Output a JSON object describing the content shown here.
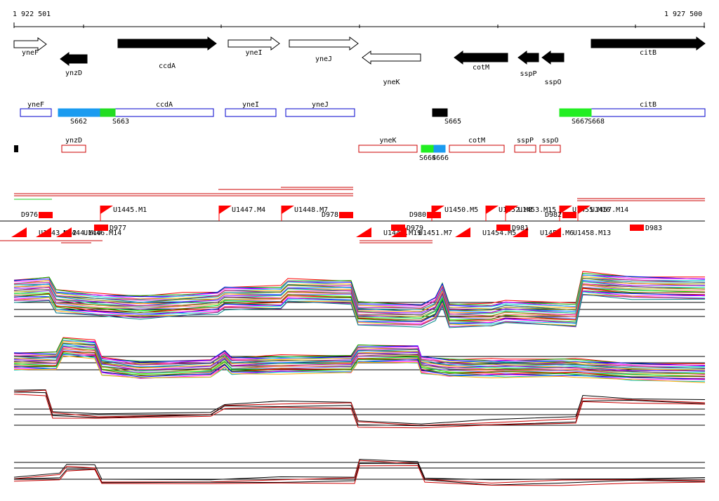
{
  "coordinates": {
    "start_label": "1 922 501",
    "end_label": "1 927 500"
  },
  "genes": [
    {
      "name": "yneF",
      "strand": "+",
      "filled": false,
      "start": 0,
      "end": 46
    },
    {
      "name": "ynzD",
      "strand": "-",
      "filled": true,
      "start": 66,
      "end": 104
    },
    {
      "name": "ccdA",
      "strand": "+",
      "filled": true,
      "start": 148,
      "end": 288
    },
    {
      "name": "yneI",
      "strand": "+",
      "filled": false,
      "start": 305,
      "end": 378
    },
    {
      "name": "yneJ",
      "strand": "+",
      "filled": false,
      "start": 392,
      "end": 490
    },
    {
      "name": "yneK",
      "strand": "-",
      "filled": false,
      "start": 496,
      "end": 579
    },
    {
      "name": "cotM",
      "strand": "-",
      "filled": true,
      "start": 627,
      "end": 703
    },
    {
      "name": "sspP",
      "strand": "-",
      "filled": true,
      "start": 718,
      "end": 747
    },
    {
      "name": "sspO",
      "strand": "-",
      "filled": true,
      "start": 752,
      "end": 783
    },
    {
      "name": "citB",
      "strand": "+",
      "filled": true,
      "start": 822,
      "end": 984
    }
  ],
  "plus_track": [
    {
      "name": "yneF",
      "start": 9,
      "end": 53
    },
    {
      "name": "ccdA",
      "start": 144,
      "end": 284
    },
    {
      "name": "yneI",
      "start": 301,
      "end": 373
    },
    {
      "name": "yneJ",
      "start": 387,
      "end": 485
    },
    {
      "name": "citB",
      "start": 822,
      "end": 984
    }
  ],
  "minus_track": [
    {
      "name": "ynzD",
      "start": 68,
      "end": 102
    },
    {
      "name": "yneK",
      "start": 491,
      "end": 574
    },
    {
      "name": "cotM",
      "start": 620,
      "end": 698
    },
    {
      "name": "sspP",
      "start": 713,
      "end": 743
    },
    {
      "name": "sspO",
      "start": 749,
      "end": 778
    }
  ],
  "segments": [
    {
      "label": "S662",
      "start": 63,
      "end": 123,
      "color": "#1a9bf0"
    },
    {
      "label": "S663",
      "start": 123,
      "end": 144,
      "color": "#22dd22"
    },
    {
      "label": "S665",
      "start": 596,
      "end": 617,
      "color": "#000000"
    },
    {
      "label": "S667",
      "start": 777,
      "end": 800,
      "color": "#22ee22"
    },
    {
      "label": "S668",
      "start": 800,
      "end": 822,
      "color": "#22ee22"
    },
    {
      "label": "S664",
      "start": 580,
      "end": 598,
      "color": "#22ee22"
    },
    {
      "label": "S666",
      "start": 598,
      "end": 614,
      "color": "#1a9bf0"
    }
  ],
  "tss_labels_upper": [
    {
      "label": "U1445.M1",
      "start": 123
    },
    {
      "label": "U1447.M4",
      "start": 292
    },
    {
      "label": "U1448.M7",
      "start": 381
    },
    {
      "label": "U1450.M5",
      "start": 595
    },
    {
      "label": "U1452.M8",
      "start": 672
    },
    {
      "label": "U1453.M15",
      "start": 700
    },
    {
      "label": "U1455.M16",
      "start": 777
    },
    {
      "label": "U1457.M14",
      "start": 803
    }
  ],
  "tss_labels_lower": [
    {
      "label": "U1443.M12",
      "start": 0
    },
    {
      "label": "U1444.M10",
      "start": 35
    },
    {
      "label": "U1446.M14",
      "start": 64
    },
    {
      "label": "U1449.M19",
      "start": 491
    },
    {
      "label": "U1451.M7",
      "start": 541
    },
    {
      "label": "U1454.M5",
      "start": 632
    },
    {
      "label": "U1456.M6",
      "start": 714
    },
    {
      "label": "U1458.M13",
      "start": 761
    }
  ],
  "d_labels": [
    {
      "label": "D976",
      "start": 10
    },
    {
      "label": "D977",
      "start": 89
    },
    {
      "label": "D978",
      "start": 438
    },
    {
      "label": "D979",
      "start": 512
    },
    {
      "label": "D980",
      "start": 563
    },
    {
      "label": "D981",
      "start": 662
    },
    {
      "label": "D982",
      "start": 756
    },
    {
      "label": "D983",
      "start": 852
    }
  ],
  "colors": {
    "plus": "#0000cc",
    "minus": "#cc0000",
    "feature": "#ff0000"
  }
}
